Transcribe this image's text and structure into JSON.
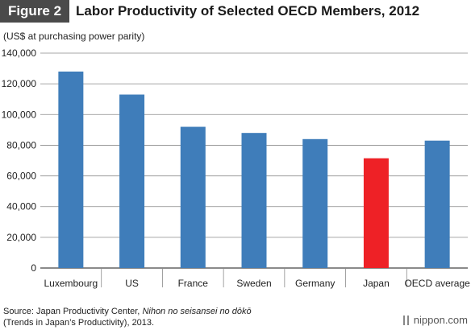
{
  "figure_label": "Figure 2",
  "title": "Labor Productivity of Selected OECD Members, 2012",
  "unit_note": "(US$ at purchasing power parity)",
  "source_line1_prefix": "Source: Japan Productivity Center, ",
  "source_line1_italic": "Nihon no seisansei no dōkō",
  "source_line2": "(Trends in Japan’s Productivity), 2013.",
  "logo_text": "nippon.com",
  "chart_data": {
    "type": "bar",
    "categories": [
      "Luxembourg",
      "US",
      "France",
      "Sweden",
      "Germany",
      "Japan",
      "OECD average"
    ],
    "values": [
      128000,
      113000,
      92000,
      88000,
      84000,
      71500,
      83000
    ],
    "bar_colors": [
      "#3f7dba",
      "#3f7dba",
      "#3f7dba",
      "#3f7dba",
      "#3f7dba",
      "#ee2126",
      "#3f7dba"
    ],
    "yticks": [
      0,
      20000,
      40000,
      60000,
      80000,
      100000,
      120000,
      140000
    ],
    "ytick_labels": [
      "0",
      "20,000",
      "40,000",
      "60,000",
      "80,000",
      "100,000",
      "120,000",
      "140,000"
    ],
    "ylim": [
      0,
      140000
    ],
    "grid": true,
    "xlabel": "",
    "ylabel": ""
  }
}
